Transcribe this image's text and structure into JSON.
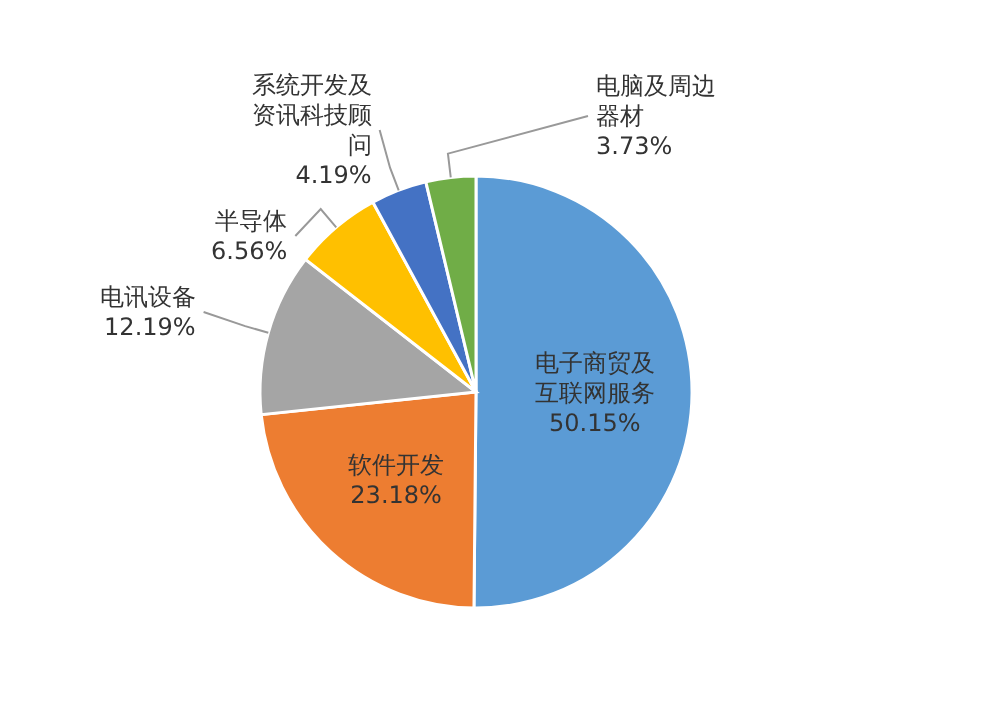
{
  "chart_data": {
    "type": "pie",
    "categories": [
      "电子商贸及互联网服务",
      "软件开发",
      "电讯设备",
      "半导体",
      "系统开发及资讯科技顾问",
      "电脑及周边器材"
    ],
    "values": [
      50.15,
      23.18,
      12.19,
      6.56,
      4.19,
      3.73
    ],
    "colors": [
      "#5b9bd5",
      "#ed7d31",
      "#a5a5a5",
      "#ffc000",
      "#4472c4",
      "#70ad47"
    ],
    "value_labels": [
      "50.15%",
      "23.18%",
      "12.19%",
      "6.56%",
      "4.19%",
      "3.73%"
    ]
  }
}
